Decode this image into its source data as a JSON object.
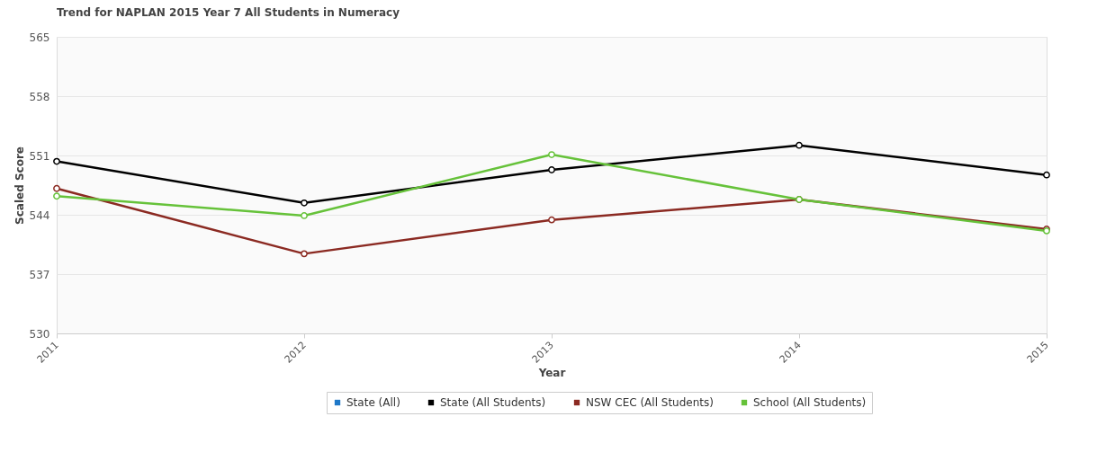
{
  "chart_data": {
    "type": "line",
    "title": "Trend for NAPLAN 2015 Year 7 All Students in Numeracy",
    "xlabel": "Year",
    "ylabel": "Scaled Score",
    "categories": [
      "2011",
      "2012",
      "2013",
      "2014",
      "2015"
    ],
    "series": [
      {
        "name": "State (All)",
        "color": "#1f78c8",
        "values": [
          null,
          null,
          null,
          null,
          null
        ]
      },
      {
        "name": "State (All Students)",
        "color": "#000000",
        "values": [
          550.3,
          545.4,
          549.3,
          552.2,
          548.7
        ]
      },
      {
        "name": "NSW CEC (All Students)",
        "color": "#8b2a22",
        "values": [
          547.1,
          539.4,
          543.4,
          545.8,
          542.3
        ]
      },
      {
        "name": "School (All Students)",
        "color": "#66c23a",
        "values": [
          546.2,
          543.9,
          551.1,
          545.8,
          542.1
        ]
      }
    ],
    "ylim": [
      530,
      565
    ],
    "yticks": [
      530,
      537,
      544,
      551,
      558,
      565
    ],
    "grid": "y",
    "legend": "bottom",
    "marker": "circle",
    "line_style": "solid"
  }
}
